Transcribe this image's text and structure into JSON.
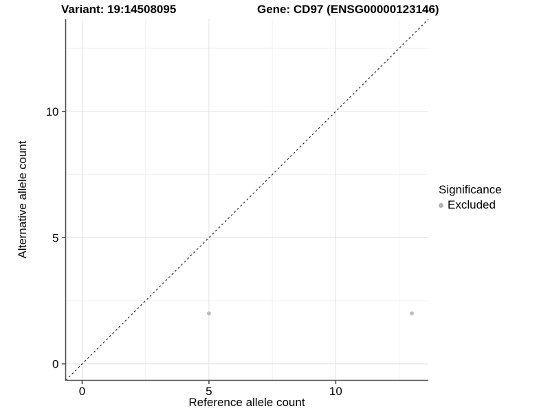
{
  "chart_data": {
    "type": "scatter",
    "title_left": "Variant: 19:14508095",
    "title_right": "Gene: CD97 (ENSG00000123146)",
    "xlabel": "Reference allele count",
    "ylabel": "Alternative allele count",
    "xlim": [
      -0.65,
      13.65
    ],
    "ylim": [
      -0.65,
      13.65
    ],
    "x_ticks": [
      0,
      5,
      10
    ],
    "y_ticks": [
      0,
      5,
      10
    ],
    "x_minor_ticks": [
      2.5,
      7.5,
      12.5
    ],
    "y_minor_ticks": [
      2.5,
      7.5,
      12.5
    ],
    "grid": true,
    "legend_position": "right",
    "series": [
      {
        "name": "Excluded",
        "points": [
          {
            "x": 5,
            "y": 2
          },
          {
            "x": 13,
            "y": 2
          }
        ],
        "color": "#bdbdbd"
      }
    ],
    "identity_line": {
      "style": "dashed",
      "from": -0.65,
      "to": 13.65,
      "color": "#1a1a1a"
    },
    "legend": {
      "title": "Significance",
      "entries": [
        {
          "label": "Excluded",
          "color": "#b3b3b3"
        }
      ]
    },
    "colors": {
      "point": "#bdbdbd",
      "grid_major": "#e3e3e3",
      "grid_minor": "#f1f1f1",
      "axis_line": "#4d4d4d",
      "tick_label": "#000000"
    }
  }
}
